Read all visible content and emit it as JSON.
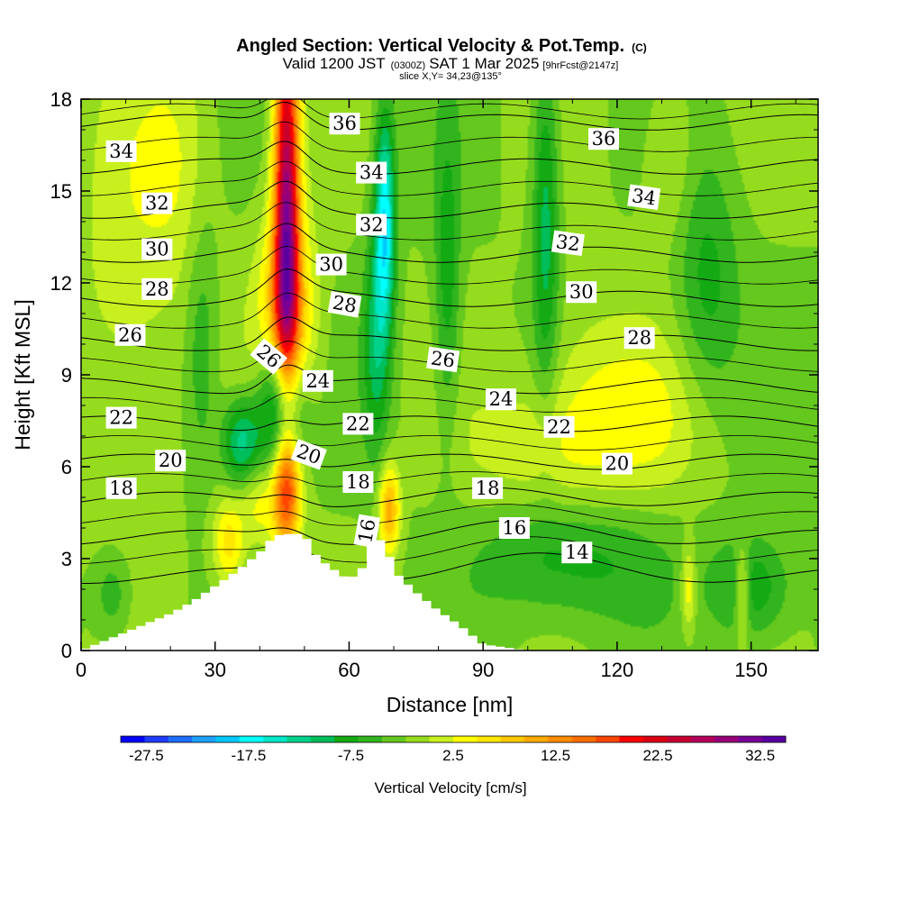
{
  "chart_data": {
    "type": "heatmap",
    "title": "Angled Section: Vertical Velocity & Pot.Temp.",
    "title_unit": "(C)",
    "subtitle": {
      "prefix": "Valid 1200 JST",
      "utc": "(0300Z)",
      "date": "SAT 1 Mar 2025",
      "forecast": "[9hrFcst@2147z]"
    },
    "slice_label": "slice X,Y= 34,23@135°",
    "xlabel": "Distance [nm]",
    "ylabel": "Height [Kft MSL]",
    "xlim": [
      0,
      165
    ],
    "ylim": [
      0,
      18
    ],
    "x_ticks": [
      0,
      30,
      60,
      90,
      120,
      150
    ],
    "y_ticks": [
      0,
      3,
      6,
      9,
      12,
      15,
      18
    ],
    "colorbar": {
      "label": "Vertical Velocity [cm/s]",
      "min": -30,
      "max": 35,
      "step": 2.5,
      "tick_labels": [
        -27.5,
        -17.5,
        -7.5,
        2.5,
        12.5,
        22.5,
        32.5
      ],
      "colors": [
        "#0000ff",
        "#1e3cff",
        "#1e6eff",
        "#1ea0ff",
        "#00c8ff",
        "#00ffff",
        "#00e6c8",
        "#00d28c",
        "#00be5a",
        "#14aa14",
        "#32b41e",
        "#64c81e",
        "#96dc1e",
        "#c8f01e",
        "#ffff00",
        "#ffe600",
        "#ffc800",
        "#ffaa00",
        "#ff8c00",
        "#ff6e00",
        "#ff4600",
        "#ff0000",
        "#dc0014",
        "#c80032",
        "#b4005a",
        "#960078",
        "#780096",
        "#5a00a0"
      ]
    },
    "terrain_profile": {
      "x": [
        0,
        10,
        15,
        20,
        25,
        30,
        35,
        40,
        43,
        45,
        50,
        52,
        55,
        58,
        60,
        63,
        65,
        68,
        70,
        75,
        80,
        85,
        90,
        100,
        120,
        165
      ],
      "y": [
        0,
        0.6,
        0.9,
        1.2,
        1.6,
        2.1,
        2.6,
        3.2,
        3.7,
        3.8,
        3.8,
        3.2,
        2.8,
        2.5,
        2.3,
        2.7,
        3.6,
        3.6,
        2.6,
        1.9,
        1.3,
        0.8,
        0.2,
        0,
        0,
        0
      ]
    },
    "velocity_features": [
      {
        "x": 46,
        "y": 14.5,
        "value": 32,
        "sx": 2.0,
        "sy": 5.0
      },
      {
        "x": 46,
        "y": 10.5,
        "value": 14,
        "sx": 4.5,
        "sy": 2.5
      },
      {
        "x": 46,
        "y": 5.2,
        "value": 18,
        "sx": 2.2,
        "sy": 1.3
      },
      {
        "x": 69,
        "y": 4.6,
        "value": 14,
        "sx": 1.6,
        "sy": 1.0
      },
      {
        "x": 33,
        "y": 3.5,
        "value": 9,
        "sx": 2.5,
        "sy": 1.0
      },
      {
        "x": 40,
        "y": 4.8,
        "value": 6,
        "sx": 3.0,
        "sy": 1.0
      },
      {
        "x": 45,
        "y": 8.0,
        "value": -21,
        "sx": 3.5,
        "sy": 1.6
      },
      {
        "x": 36,
        "y": 6.8,
        "value": -12,
        "sx": 3.0,
        "sy": 1.0
      },
      {
        "x": 68,
        "y": 14.0,
        "value": -17,
        "sx": 1.6,
        "sy": 2.5
      },
      {
        "x": 66,
        "y": 10.0,
        "value": -8,
        "sx": 2.0,
        "sy": 2.5
      },
      {
        "x": 82,
        "y": 12.0,
        "value": -7,
        "sx": 2.0,
        "sy": 3.5
      },
      {
        "x": 104,
        "y": 14.0,
        "value": -9,
        "sx": 2.0,
        "sy": 4.0
      },
      {
        "x": 27,
        "y": 10.0,
        "value": -5,
        "sx": 2.5,
        "sy": 3.0
      },
      {
        "x": 110,
        "y": 3.0,
        "value": -7,
        "sx": 14.0,
        "sy": 1.5
      },
      {
        "x": 150,
        "y": 2.0,
        "value": -8,
        "sx": 6.0,
        "sy": 1.2
      },
      {
        "x": 7,
        "y": 1.8,
        "value": -5,
        "sx": 3.0,
        "sy": 1.0
      },
      {
        "x": 140,
        "y": 12.0,
        "value": -6,
        "sx": 5.0,
        "sy": 3.0
      },
      {
        "x": 10,
        "y": 12.0,
        "value": 4,
        "sx": 8.0,
        "sy": 5.0
      },
      {
        "x": 22,
        "y": 16.0,
        "value": 4,
        "sx": 6.0,
        "sy": 3.0
      },
      {
        "x": 125,
        "y": 7.5,
        "value": 5,
        "sx": 12.0,
        "sy": 2.0
      },
      {
        "x": 100,
        "y": 6.5,
        "value": 4,
        "sx": 10.0,
        "sy": 1.5
      },
      {
        "x": 132,
        "y": 16.0,
        "value": 4,
        "sx": 4.0,
        "sy": 2.0
      },
      {
        "x": 136,
        "y": 2.0,
        "value": 8,
        "sx": 1.2,
        "sy": 1.0
      },
      {
        "x": 148,
        "y": 2.0,
        "value": 9,
        "sx": 1.2,
        "sy": 1.0
      },
      {
        "x": 112,
        "y": 8.0,
        "value": 3,
        "sx": 8.0,
        "sy": 3.0
      }
    ],
    "isotherms": [
      14,
      16,
      18,
      20,
      22,
      24,
      26,
      28,
      30,
      32,
      34,
      36
    ],
    "contour_labels": [
      {
        "text": "34",
        "x": 9,
        "y": 16.3,
        "rot": 0
      },
      {
        "text": "32",
        "x": 17,
        "y": 14.6,
        "rot": 0
      },
      {
        "text": "30",
        "x": 17,
        "y": 13.1,
        "rot": 0
      },
      {
        "text": "28",
        "x": 17,
        "y": 11.8,
        "rot": 0
      },
      {
        "text": "26",
        "x": 11,
        "y": 10.3,
        "rot": 0
      },
      {
        "text": "22",
        "x": 9,
        "y": 7.6,
        "rot": 0
      },
      {
        "text": "20",
        "x": 20,
        "y": 6.2,
        "rot": 0
      },
      {
        "text": "18",
        "x": 9,
        "y": 5.3,
        "rot": 0
      },
      {
        "text": "36",
        "x": 59,
        "y": 17.2,
        "rot": 0
      },
      {
        "text": "34",
        "x": 65,
        "y": 15.6,
        "rot": 0
      },
      {
        "text": "32",
        "x": 65,
        "y": 13.9,
        "rot": 0
      },
      {
        "text": "30",
        "x": 56,
        "y": 12.6,
        "rot": 0
      },
      {
        "text": "28",
        "x": 59,
        "y": 11.3,
        "rot": 10
      },
      {
        "text": "26",
        "x": 42,
        "y": 9.6,
        "rot": 40
      },
      {
        "text": "24",
        "x": 53,
        "y": 8.8,
        "rot": 0
      },
      {
        "text": "22",
        "x": 62,
        "y": 7.4,
        "rot": 0
      },
      {
        "text": "20",
        "x": 51,
        "y": 6.4,
        "rot": 20
      },
      {
        "text": "18",
        "x": 62,
        "y": 5.5,
        "rot": 0
      },
      {
        "text": "16",
        "x": 64,
        "y": 3.9,
        "rot": -80
      },
      {
        "text": "36",
        "x": 117,
        "y": 16.7,
        "rot": 0
      },
      {
        "text": "34",
        "x": 126,
        "y": 14.8,
        "rot": 8
      },
      {
        "text": "32",
        "x": 109,
        "y": 13.3,
        "rot": 8
      },
      {
        "text": "30",
        "x": 112,
        "y": 11.7,
        "rot": 0
      },
      {
        "text": "28",
        "x": 125,
        "y": 10.2,
        "rot": 0
      },
      {
        "text": "26",
        "x": 81,
        "y": 9.5,
        "rot": 8
      },
      {
        "text": "24",
        "x": 94,
        "y": 8.2,
        "rot": 0
      },
      {
        "text": "22",
        "x": 107,
        "y": 7.3,
        "rot": 0
      },
      {
        "text": "20",
        "x": 120,
        "y": 6.1,
        "rot": 0
      },
      {
        "text": "18",
        "x": 91,
        "y": 5.3,
        "rot": 0
      },
      {
        "text": "16",
        "x": 97,
        "y": 4.0,
        "rot": 0
      },
      {
        "text": "14",
        "x": 111,
        "y": 3.2,
        "rot": 0
      }
    ]
  }
}
